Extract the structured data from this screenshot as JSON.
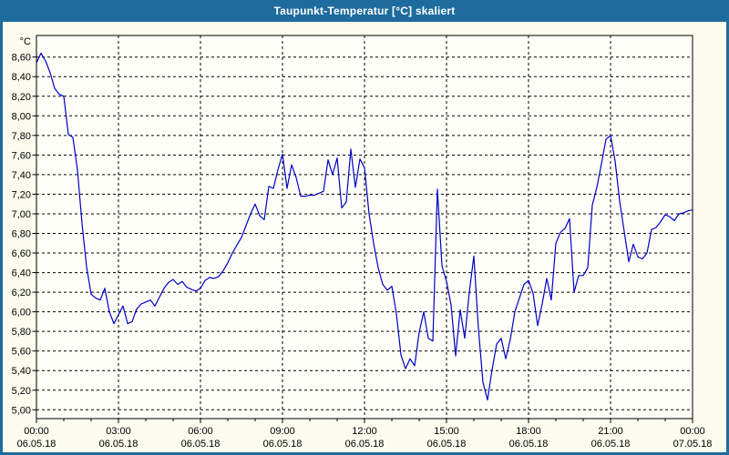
{
  "window": {
    "title": "Taupunkt-Temperatur [°C] skaliert"
  },
  "colors": {
    "titlebar": "#1e6b9e",
    "window_border": "#1e6b9e",
    "content_bg": "#fbfbee",
    "plot_bg": "#fffff9",
    "grid": "#000000",
    "axis": "#000000",
    "series_line": "#0000c8",
    "title_text": "#ffffff",
    "label_text": "#000000"
  },
  "chart_data": {
    "type": "line",
    "title": "Taupunkt-Temperatur [°C] skaliert",
    "ylabel": "°C",
    "xlabel": "",
    "legend": "none",
    "grid": "dashed",
    "ylim": [
      4.91,
      8.82
    ],
    "xlim_hours": [
      0,
      24
    ],
    "y_ticks": [
      {
        "value": 8.6,
        "label": "8,60"
      },
      {
        "value": 8.4,
        "label": "8,40"
      },
      {
        "value": 8.2,
        "label": "8,20"
      },
      {
        "value": 8.0,
        "label": "8,00"
      },
      {
        "value": 7.8,
        "label": "7,80"
      },
      {
        "value": 7.6,
        "label": "7,60"
      },
      {
        "value": 7.4,
        "label": "7,40"
      },
      {
        "value": 7.2,
        "label": "7,20"
      },
      {
        "value": 7.0,
        "label": "7,00"
      },
      {
        "value": 6.8,
        "label": "6,80"
      },
      {
        "value": 6.6,
        "label": "6,60"
      },
      {
        "value": 6.4,
        "label": "6,40"
      },
      {
        "value": 6.2,
        "label": "6,20"
      },
      {
        "value": 6.0,
        "label": "6,00"
      },
      {
        "value": 5.8,
        "label": "5,80"
      },
      {
        "value": 5.6,
        "label": "5,60"
      },
      {
        "value": 5.4,
        "label": "5,40"
      },
      {
        "value": 5.2,
        "label": "5,20"
      },
      {
        "value": 5.0,
        "label": "5,00"
      }
    ],
    "x_ticks": [
      {
        "hour": 0,
        "time": "00:00",
        "date": "06.05.18"
      },
      {
        "hour": 3,
        "time": "03:00",
        "date": "06.05.18"
      },
      {
        "hour": 6,
        "time": "06:00",
        "date": "06.05.18"
      },
      {
        "hour": 9,
        "time": "09:00",
        "date": "06.05.18"
      },
      {
        "hour": 12,
        "time": "12:00",
        "date": "06.05.18"
      },
      {
        "hour": 15,
        "time": "15:00",
        "date": "06.05.18"
      },
      {
        "hour": 18,
        "time": "18:00",
        "date": "06.05.18"
      },
      {
        "hour": 21,
        "time": "21:00",
        "date": "06.05.18"
      },
      {
        "hour": 24,
        "time": "00:00",
        "date": "07.05.18"
      }
    ],
    "x_minor_tick_hours": 1,
    "series": [
      {
        "name": "Taupunkt-Temperatur",
        "color": "#0000c8",
        "start_time": "00:00",
        "sample_interval_minutes": 10,
        "values": [
          8.54,
          8.64,
          8.56,
          8.44,
          8.28,
          8.22,
          8.2,
          7.81,
          7.78,
          7.45,
          6.9,
          6.46,
          6.18,
          6.14,
          6.12,
          6.24,
          6.0,
          5.88,
          5.97,
          6.06,
          5.88,
          5.9,
          6.03,
          6.08,
          6.1,
          6.12,
          6.06,
          6.15,
          6.24,
          6.3,
          6.33,
          6.28,
          6.31,
          6.25,
          6.23,
          6.21,
          6.24,
          6.32,
          6.35,
          6.34,
          6.36,
          6.42,
          6.5,
          6.6,
          6.68,
          6.76,
          6.88,
          7.0,
          7.1,
          6.98,
          6.94,
          7.28,
          7.26,
          7.45,
          7.61,
          7.26,
          7.5,
          7.37,
          7.18,
          7.18,
          7.19,
          7.19,
          7.21,
          7.23,
          7.55,
          7.4,
          7.57,
          7.06,
          7.12,
          7.66,
          7.27,
          7.56,
          7.47,
          7.0,
          6.7,
          6.45,
          6.28,
          6.22,
          6.26,
          5.98,
          5.56,
          5.42,
          5.52,
          5.45,
          5.79,
          6.0,
          5.73,
          5.7,
          7.25,
          6.47,
          6.31,
          6.07,
          5.55,
          6.02,
          5.73,
          6.2,
          6.57,
          5.83,
          5.28,
          5.1,
          5.41,
          5.67,
          5.73,
          5.52,
          5.72,
          6.0,
          6.14,
          6.28,
          6.32,
          6.19,
          5.86,
          6.08,
          6.34,
          6.12,
          6.7,
          6.81,
          6.85,
          6.95,
          6.2,
          6.37,
          6.37,
          6.45,
          7.09,
          7.27,
          7.51,
          7.76,
          7.8,
          7.54,
          7.13,
          6.82,
          6.51,
          6.69,
          6.56,
          6.54,
          6.6,
          6.84,
          6.86,
          6.92,
          6.99,
          6.97,
          6.93,
          7.0,
          7.01,
          7.03,
          7.04
        ]
      }
    ]
  }
}
